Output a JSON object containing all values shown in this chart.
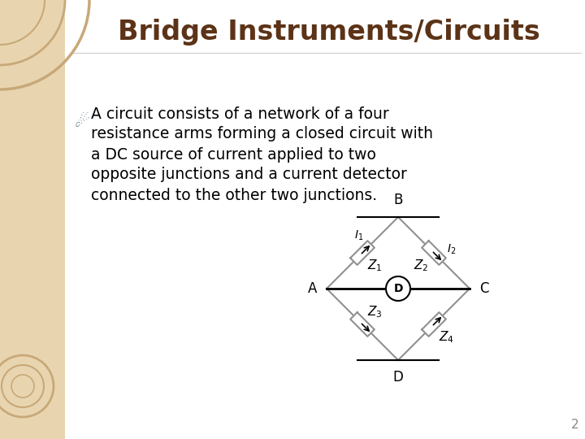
{
  "title": "Bridge Instruments/Circuits",
  "title_color": "#5C3317",
  "title_fontsize": 24,
  "title_fontweight": "bold",
  "bg_color": "#FFFFFF",
  "left_panel_color": "#E8D5B0",
  "bullet_fontsize": 13.5,
  "text_color": "#000000",
  "circuit_color": "#909090",
  "circuit_line_color": "#000000",
  "page_number": "2",
  "lines": [
    "A circuit consists of a network of a four",
    "resistance arms forming a closed circuit with",
    "a DC source of current applied to two",
    "opposite junctions and a current detector",
    "connected to the other two junctions."
  ]
}
